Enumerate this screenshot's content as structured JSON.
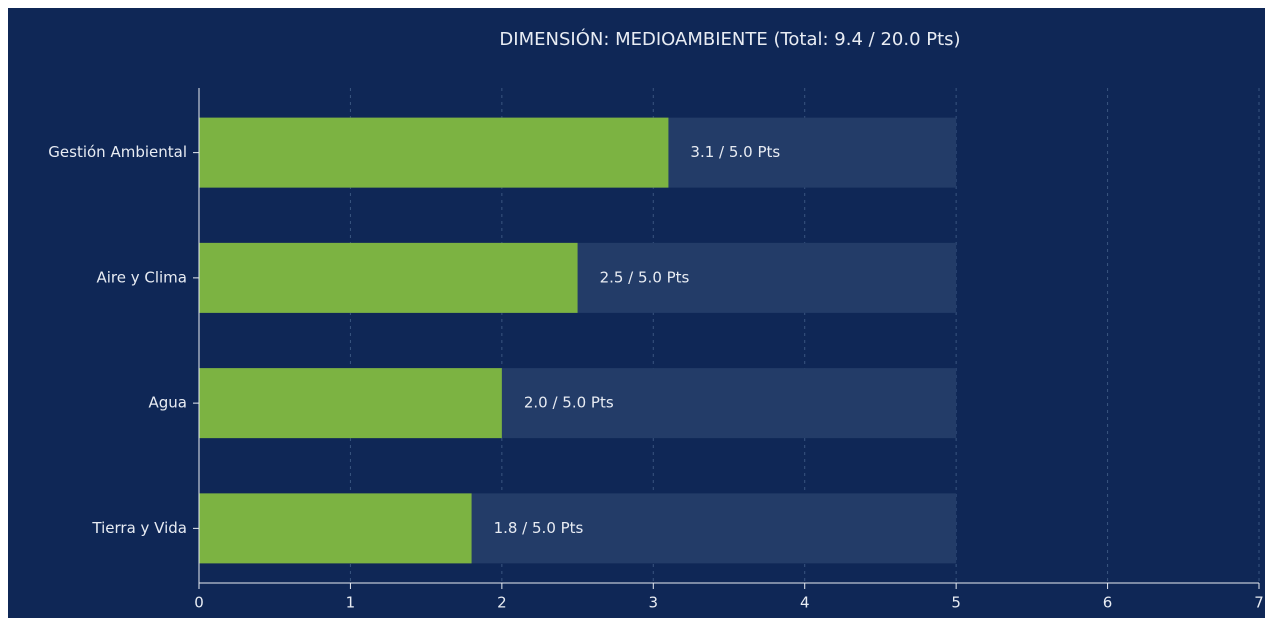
{
  "chart_data": {
    "type": "bar",
    "orientation": "horizontal",
    "title": "DIMENSIÓN: MEDIOAMBIENTE (Total: 9.4 / 20.0 Pts)",
    "categories": [
      "Gestión Ambiental",
      "Aire y Clima",
      "Agua",
      "Tierra y Vida"
    ],
    "values": [
      3.1,
      2.5,
      2.0,
      1.8
    ],
    "value_labels": [
      "3.1 / 5.0 Pts",
      "2.5 / 5.0 Pts",
      "2.0 / 5.0 Pts",
      "1.8 / 5.0 Pts"
    ],
    "max_values": [
      5.0,
      5.0,
      5.0,
      5.0
    ],
    "color": "#7cb342",
    "max_color": "#233c68",
    "xlim": [
      0,
      7
    ],
    "xticks": [
      0,
      1,
      2,
      3,
      4,
      5,
      6,
      7
    ],
    "grid": true
  }
}
